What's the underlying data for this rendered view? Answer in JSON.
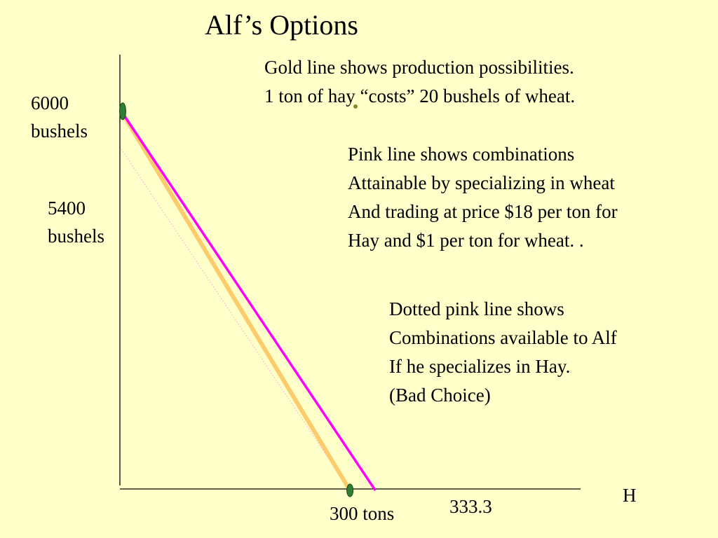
{
  "title": "Alf’s Options",
  "colors": {
    "background": "#FFFFC9",
    "gold_line": "#FBCB6C",
    "pink_line": "#FF00FF",
    "dotted_pink_line": "#FF9BE0",
    "point_marker": "#2E7D32",
    "axis": "#000000"
  },
  "y_labels": {
    "top": [
      "6000",
      "bushels"
    ],
    "mid": [
      "5400",
      "bushels"
    ]
  },
  "x_labels": {
    "gold_intercept": "300 tons",
    "pink_intercept": "333.3",
    "axis_name": "H"
  },
  "notes": {
    "gold": [
      "Gold line shows production possibilities.",
      "1 ton of hay  “costs” 20 bushels of wheat."
    ],
    "pink": [
      "Pink line shows combinations",
      "Attainable by specializing in wheat",
      "And trading at price $18 per ton for",
      "Hay and $1 per ton for wheat. ."
    ],
    "dotted": [
      "Dotted pink line shows",
      "Combinations available to Alf",
      "If he specializes in Hay.",
      "(Bad Choice)"
    ]
  },
  "chart_data": {
    "type": "line",
    "xlabel": "H",
    "ylabel": "",
    "series": [
      {
        "points": [
          [
            0,
            6000
          ],
          [
            300,
            0
          ]
        ]
      },
      {
        "points": [
          [
            0,
            6000
          ],
          [
            333.3,
            0
          ]
        ]
      },
      {
        "points": [
          [
            0,
            5400
          ],
          [
            300,
            0
          ]
        ]
      }
    ]
  }
}
